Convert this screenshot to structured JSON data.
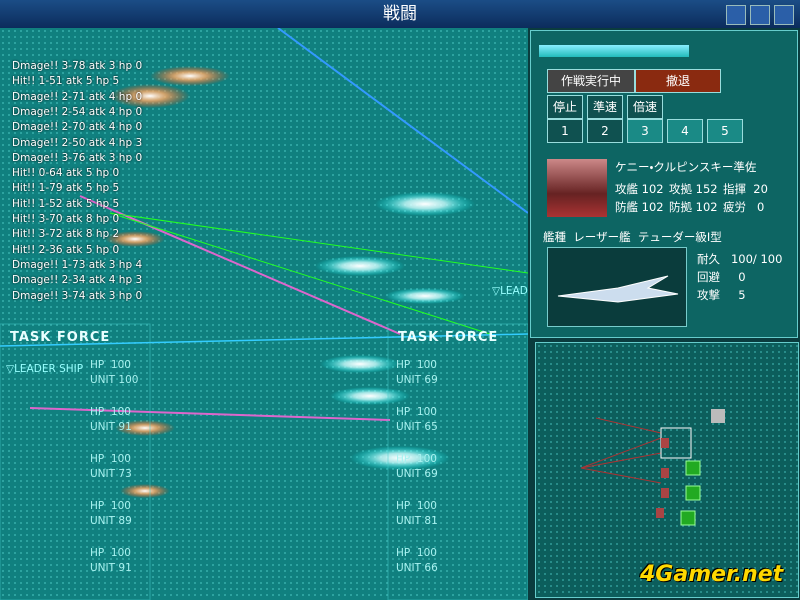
{
  "window": {
    "title": "戦闘"
  },
  "log": [
    "Dmage!! 3-78 atk 3 hp 0",
    "Hit!! 1-51 atk 5 hp 5",
    "Dmage!! 2-71 atk 4 hp 0",
    "Dmage!! 2-54 atk 4 hp 0",
    "Dmage!! 2-70 atk 4 hp 0",
    "Dmage!! 2-50 atk 4 hp 3",
    "Dmage!! 3-76 atk 3 hp 0",
    "Hit!! 0-64 atk 5 hp 0",
    "Hit!! 1-79 atk 5 hp 5",
    "Hit!! 1-52 atk 5 hp 5",
    "Hit!! 3-70 atk 8 hp 0",
    "Hit!! 3-72 atk 8 hp 2",
    "Hit!! 2-36 atk 5 hp 0",
    "Dmage!! 1-73 atk 3 hp 4",
    "Dmage!! 2-34 atk 4 hp 3",
    "Dmage!! 3-74 atk 3 hp 0"
  ],
  "left_force": {
    "title": "TASK FORCE",
    "leader": "▽LEADER SHIP",
    "units": [
      {
        "hp": "HP  100",
        "unit": "UNIT 100"
      },
      {
        "hp": "HP  100",
        "unit": "UNIT 91"
      },
      {
        "hp": "HP  100",
        "unit": "UNIT 73"
      },
      {
        "hp": "HP  100",
        "unit": "UNIT 89"
      },
      {
        "hp": "HP  100",
        "unit": "UNIT 91"
      }
    ]
  },
  "right_force": {
    "title": "TASK FORCE",
    "leader": "▽LEAD",
    "units": [
      {
        "hp": "HP  100",
        "unit": "UNIT 69"
      },
      {
        "hp": "HP  100",
        "unit": "UNIT 65"
      },
      {
        "hp": "HP  100",
        "unit": "UNIT 69"
      },
      {
        "hp": "HP  100",
        "unit": "UNIT 81"
      },
      {
        "hp": "HP  100",
        "unit": "UNIT 66"
      }
    ]
  },
  "panel": {
    "status": "作戦実行中",
    "retreat": "撤退",
    "speeds": [
      "停止",
      "準速",
      "倍速"
    ],
    "groups": [
      "1",
      "2",
      "3",
      "4",
      "5"
    ],
    "commander": {
      "name": "ケニー・クルピンスキー準佐",
      "stats": [
        [
          "攻艦 102",
          "攻拠 152",
          "指揮  20"
        ],
        [
          "防艦 102",
          "防拠 102",
          "疲労   0"
        ]
      ]
    },
    "ship_type": "艦種  レーザー艦  テューダー級Ⅰ型",
    "ship_stats": [
      "耐久   100/ 100",
      "回避     0",
      "攻撃     5"
    ]
  },
  "watermark": "4Gamer.net"
}
